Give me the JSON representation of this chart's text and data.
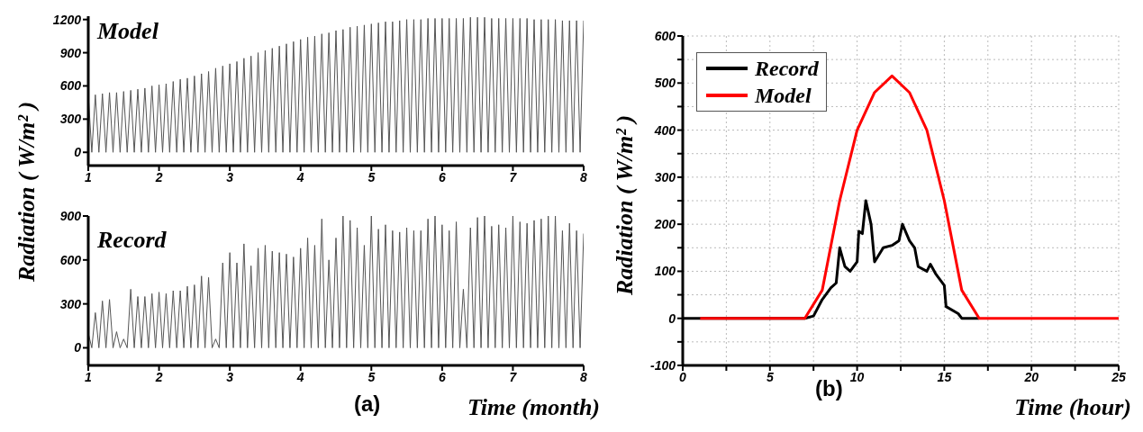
{
  "chart_data": [
    {
      "type": "line",
      "ylabel": "Radiation ( W/m² )",
      "annotations": [
        "Model"
      ],
      "xlim": [
        1,
        8
      ],
      "xticks": [
        1,
        2,
        3,
        4,
        5,
        6,
        7,
        8
      ],
      "ylim": [
        -120,
        1230
      ],
      "yticks": [
        0,
        300,
        600,
        900,
        1200
      ],
      "series": [
        {
          "color": "#555555",
          "x": [
            1,
            1.05,
            1.1,
            1.15,
            1.2,
            1.25,
            1.3,
            1.35,
            1.4,
            1.45,
            1.5,
            1.55,
            1.6,
            1.65,
            1.7,
            1.75,
            1.8,
            1.85,
            1.9,
            1.95,
            2,
            2.05,
            2.1,
            2.15,
            2.2,
            2.25,
            2.3,
            2.35,
            2.4,
            2.45,
            2.5,
            2.55,
            2.6,
            2.65,
            2.7,
            2.75,
            2.8,
            2.85,
            2.9,
            2.95,
            3,
            3.05,
            3.1,
            3.15,
            3.2,
            3.25,
            3.3,
            3.35,
            3.4,
            3.45,
            3.5,
            3.55,
            3.6,
            3.65,
            3.7,
            3.75,
            3.8,
            3.85,
            3.9,
            3.95,
            4,
            4.05,
            4.1,
            4.15,
            4.2,
            4.25,
            4.3,
            4.35,
            4.4,
            4.45,
            4.5,
            4.55,
            4.6,
            4.65,
            4.7,
            4.75,
            4.8,
            4.85,
            4.9,
            4.95,
            5,
            5.05,
            5.1,
            5.15,
            5.2,
            5.25,
            5.3,
            5.35,
            5.4,
            5.45,
            5.5,
            5.55,
            5.6,
            5.65,
            5.7,
            5.75,
            5.8,
            5.85,
            5.9,
            5.95,
            6,
            6.05,
            6.1,
            6.15,
            6.2,
            6.25,
            6.3,
            6.35,
            6.4,
            6.45,
            6.5,
            6.55,
            6.6,
            6.65,
            6.7,
            6.75,
            6.8,
            6.85,
            6.9,
            6.95,
            7,
            7.05,
            7.1,
            7.15,
            7.2,
            7.25,
            7.3,
            7.35,
            7.4,
            7.45,
            7.5,
            7.55,
            7.6,
            7.65,
            7.7,
            7.75,
            7.8,
            7.85,
            7.9,
            7.95,
            8
          ],
          "values": [
            520,
            0,
            520,
            0,
            530,
            0,
            540,
            0,
            540,
            0,
            550,
            0,
            560,
            0,
            570,
            0,
            580,
            0,
            600,
            0,
            610,
            0,
            620,
            0,
            640,
            0,
            660,
            0,
            670,
            0,
            690,
            0,
            710,
            0,
            730,
            0,
            760,
            0,
            780,
            0,
            800,
            0,
            820,
            0,
            850,
            0,
            870,
            0,
            900,
            0,
            920,
            0,
            940,
            0,
            960,
            0,
            980,
            0,
            1000,
            0,
            1020,
            0,
            1040,
            0,
            1050,
            0,
            1070,
            0,
            1080,
            0,
            1100,
            0,
            1110,
            0,
            1130,
            0,
            1140,
            0,
            1150,
            0,
            1160,
            0,
            1170,
            0,
            1180,
            0,
            1180,
            0,
            1190,
            0,
            1200,
            0,
            1200,
            0,
            1200,
            0,
            1210,
            0,
            1210,
            0,
            1210,
            0,
            1210,
            0,
            1210,
            0,
            1210,
            0,
            1220,
            0,
            1220,
            0,
            1220,
            0,
            1210,
            0,
            1210,
            0,
            1210,
            0,
            1210,
            0,
            1210,
            0,
            1210,
            0,
            1200,
            0,
            1200,
            0,
            1200,
            0,
            1200,
            0,
            1190,
            0,
            1190,
            0,
            1190,
            0,
            1190
          ]
        }
      ]
    },
    {
      "type": "line",
      "xlabel": "Time (month)",
      "annotations": [
        "Record",
        "(a)"
      ],
      "xlim": [
        1,
        8
      ],
      "xticks": [
        1,
        2,
        3,
        4,
        5,
        6,
        7,
        8
      ],
      "ylim": [
        -120,
        900
      ],
      "yticks": [
        0,
        300,
        600,
        900
      ],
      "series": [
        {
          "color": "#555555",
          "x": [
            1,
            1.05,
            1.1,
            1.15,
            1.2,
            1.25,
            1.3,
            1.35,
            1.4,
            1.45,
            1.5,
            1.55,
            1.6,
            1.65,
            1.7,
            1.75,
            1.8,
            1.85,
            1.9,
            1.95,
            2,
            2.05,
            2.1,
            2.15,
            2.2,
            2.25,
            2.3,
            2.35,
            2.4,
            2.45,
            2.5,
            2.55,
            2.6,
            2.65,
            2.7,
            2.75,
            2.8,
            2.85,
            2.9,
            2.95,
            3,
            3.05,
            3.1,
            3.15,
            3.2,
            3.25,
            3.3,
            3.35,
            3.4,
            3.45,
            3.5,
            3.55,
            3.6,
            3.65,
            3.7,
            3.75,
            3.8,
            3.85,
            3.9,
            3.95,
            4,
            4.05,
            4.1,
            4.15,
            4.2,
            4.25,
            4.3,
            4.35,
            4.4,
            4.45,
            4.5,
            4.55,
            4.6,
            4.65,
            4.7,
            4.75,
            4.8,
            4.85,
            4.9,
            4.95,
            5,
            5.05,
            5.1,
            5.15,
            5.2,
            5.25,
            5.3,
            5.35,
            5.4,
            5.45,
            5.5,
            5.55,
            5.6,
            5.65,
            5.7,
            5.75,
            5.8,
            5.85,
            5.9,
            5.95,
            6,
            6.05,
            6.1,
            6.15,
            6.2,
            6.25,
            6.3,
            6.35,
            6.4,
            6.45,
            6.5,
            6.55,
            6.6,
            6.65,
            6.7,
            6.75,
            6.8,
            6.85,
            6.9,
            6.95,
            7,
            7.05,
            7.1,
            7.15,
            7.2,
            7.25,
            7.3,
            7.35,
            7.4,
            7.45,
            7.5,
            7.55,
            7.6,
            7.65,
            7.7,
            7.75,
            7.8,
            7.85,
            7.9,
            7.95,
            8
          ],
          "values": [
            100,
            0,
            240,
            0,
            320,
            0,
            330,
            0,
            110,
            0,
            60,
            0,
            400,
            0,
            350,
            0,
            350,
            0,
            370,
            0,
            380,
            0,
            370,
            0,
            390,
            0,
            390,
            0,
            420,
            0,
            430,
            0,
            490,
            0,
            480,
            0,
            60,
            0,
            580,
            0,
            650,
            0,
            580,
            0,
            710,
            0,
            560,
            0,
            680,
            0,
            700,
            0,
            660,
            0,
            650,
            0,
            640,
            0,
            620,
            0,
            680,
            0,
            750,
            0,
            700,
            0,
            880,
            0,
            600,
            0,
            750,
            0,
            900,
            0,
            870,
            0,
            820,
            0,
            700,
            0,
            900,
            0,
            810,
            0,
            840,
            0,
            800,
            0,
            790,
            0,
            820,
            0,
            800,
            0,
            800,
            0,
            880,
            0,
            900,
            0,
            840,
            0,
            800,
            0,
            860,
            0,
            400,
            0,
            820,
            0,
            890,
            0,
            900,
            0,
            830,
            0,
            840,
            0,
            820,
            0,
            900,
            0,
            860,
            0,
            850,
            0,
            870,
            0,
            880,
            0,
            900,
            0,
            900,
            0,
            800,
            0,
            850,
            0,
            800,
            0,
            780
          ]
        }
      ]
    },
    {
      "type": "line",
      "ylabel": "Radiation ( W/m² )",
      "xlabel": "Time (hour)",
      "annotations": [
        "(b)"
      ],
      "legend": "top left",
      "grid": true,
      "xlim": [
        0,
        25
      ],
      "xticks": [
        0,
        {
          "value": 2.5,
          "label": null
        },
        5,
        {
          "value": 7.5,
          "label": null
        },
        10,
        {
          "value": 12.5,
          "label": null
        },
        15,
        {
          "value": 17.5,
          "label": null
        },
        20,
        {
          "value": 22.5,
          "label": null
        },
        25
      ],
      "ylim": [
        -100,
        600
      ],
      "yticks": [
        -100,
        {
          "value": -50,
          "label": null
        },
        0,
        {
          "value": 50,
          "label": null
        },
        100,
        {
          "value": 150,
          "label": null
        },
        200,
        {
          "value": 250,
          "label": null
        },
        300,
        {
          "value": 350,
          "label": null
        },
        400,
        {
          "value": 450,
          "label": null
        },
        500,
        {
          "value": 550,
          "label": null
        },
        600
      ],
      "series": [
        {
          "name": "Record",
          "color": "#000000",
          "x": [
            0,
            7,
            7.5,
            8,
            8.5,
            8.8,
            9,
            9.3,
            9.6,
            10,
            10.1,
            10.3,
            10.5,
            10.8,
            11,
            11.5,
            12,
            12.4,
            12.6,
            13,
            13.3,
            13.5,
            14,
            14.2,
            14.5,
            15,
            15.1,
            15.8,
            16,
            17
          ],
          "values": [
            0,
            0,
            5,
            40,
            65,
            75,
            150,
            110,
            100,
            120,
            185,
            180,
            250,
            200,
            120,
            150,
            155,
            165,
            200,
            165,
            150,
            110,
            100,
            115,
            95,
            70,
            25,
            10,
            0,
            0
          ]
        },
        {
          "name": "Model",
          "color": "#ff0000",
          "x": [
            1,
            7,
            8,
            9,
            10,
            11,
            12,
            13,
            14,
            15,
            16,
            17,
            25
          ],
          "values": [
            0,
            0,
            60,
            250,
            400,
            480,
            515,
            480,
            400,
            250,
            60,
            0,
            0
          ]
        }
      ]
    }
  ]
}
